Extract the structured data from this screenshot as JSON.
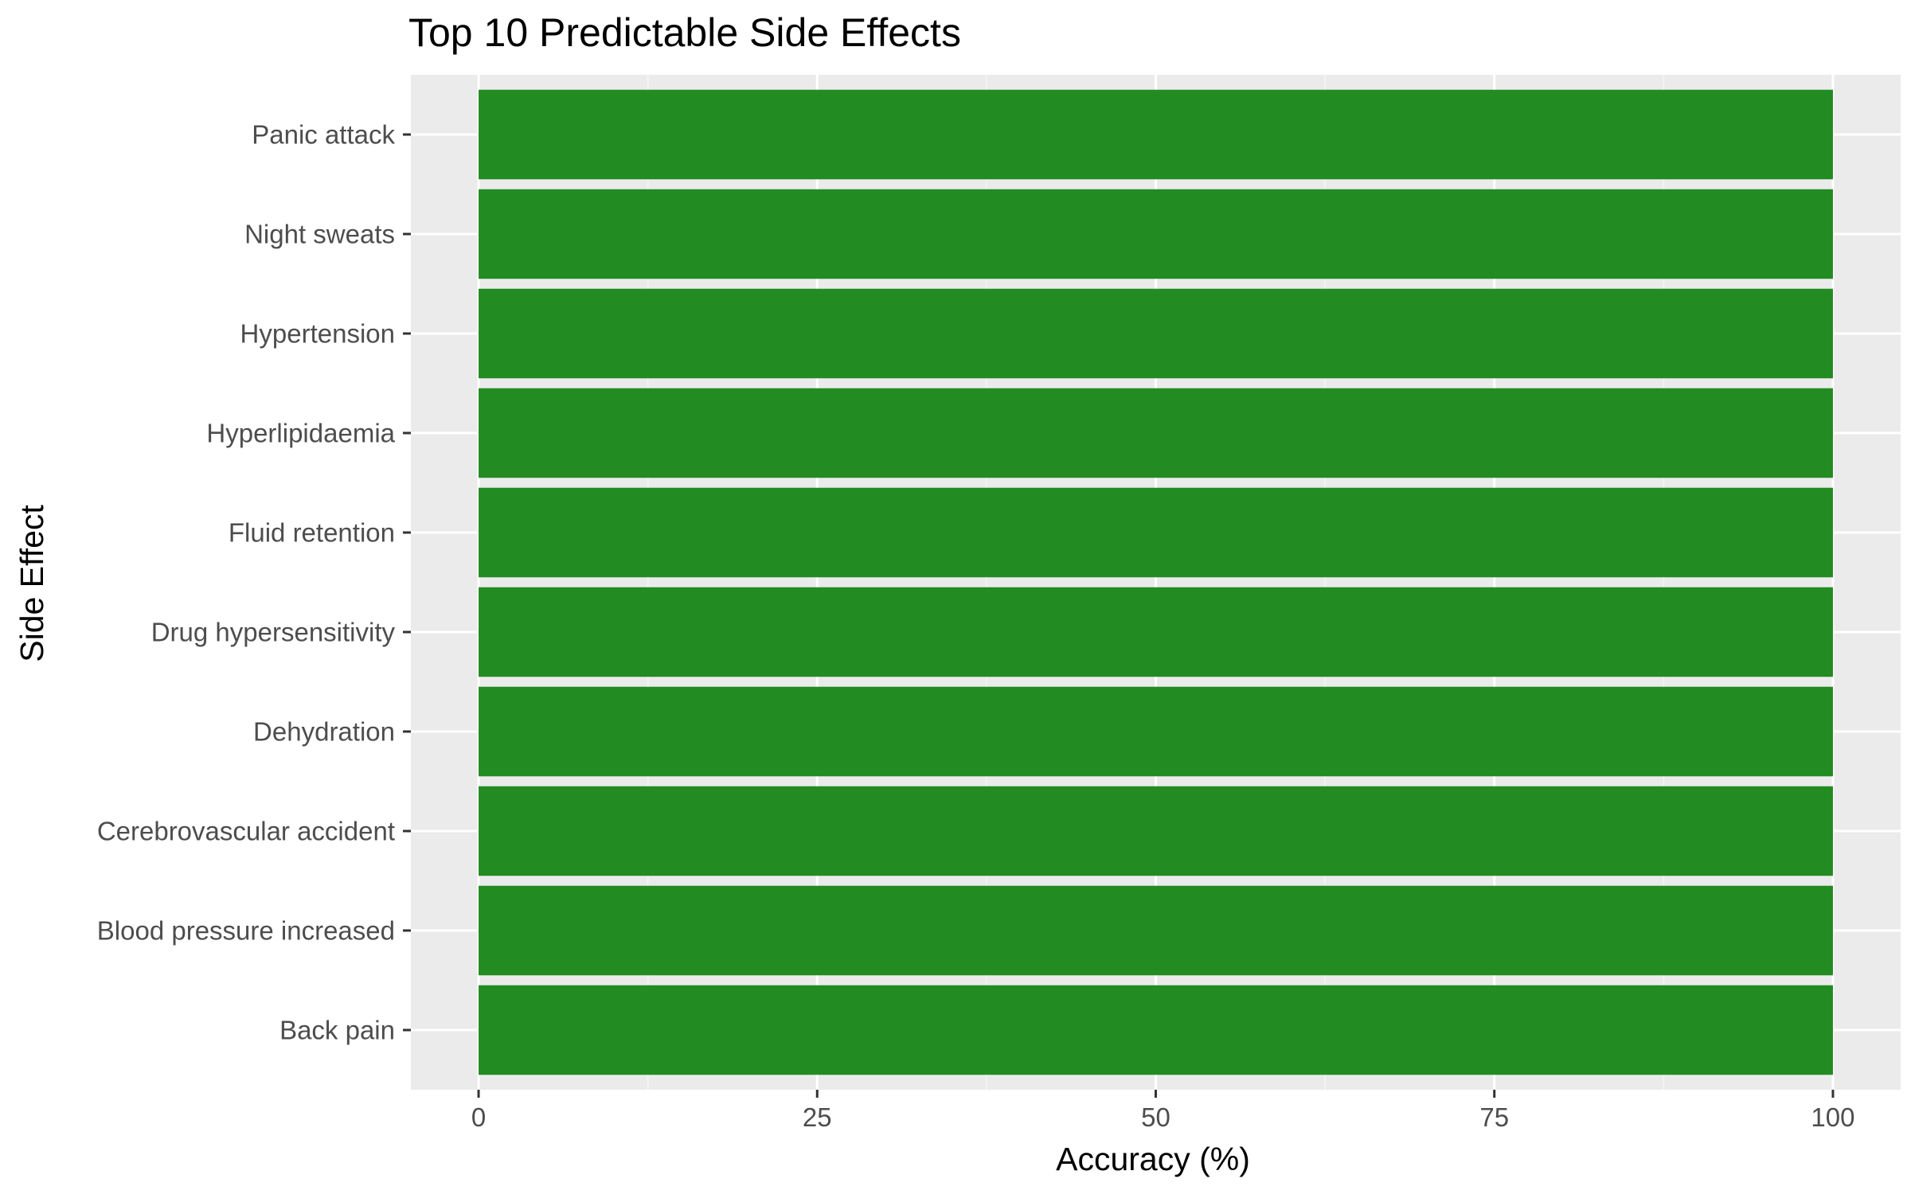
{
  "chart_data": {
    "type": "bar",
    "orientation": "horizontal",
    "title": "Top 10 Predictable Side Effects",
    "xlabel": "Accuracy (%)",
    "ylabel": "Side Effect",
    "categories": [
      "Back pain",
      "Blood pressure increased",
      "Cerebrovascular accident",
      "Dehydration",
      "Drug hypersensitivity",
      "Fluid retention",
      "Hyperlipidaemia",
      "Hypertension",
      "Night sweats",
      "Panic attack"
    ],
    "values": [
      100,
      100,
      100,
      100,
      100,
      100,
      100,
      100,
      100,
      100
    ],
    "xlim": [
      -5,
      105
    ],
    "x_ticks": [
      0,
      25,
      50,
      75,
      100
    ],
    "x_minor_ticks": [
      12.5,
      37.5,
      62.5,
      87.5
    ],
    "grid": true,
    "legend": "none",
    "colors": {
      "bar": "#228B22",
      "panel_background": "#EBEBEB",
      "grid_major": "#FFFFFF",
      "grid_minor": "#F5F5F5",
      "tick_label": "#4D4D4D",
      "axis_tick": "#333333",
      "text": "#000000"
    }
  }
}
